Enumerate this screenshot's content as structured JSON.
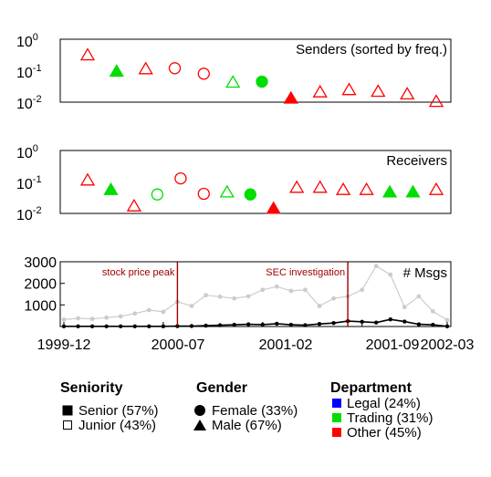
{
  "chart_data": [
    {
      "type": "scatter",
      "title": "Senders (sorted by freq.)",
      "yscale": "log",
      "ylim": [
        0.01,
        1
      ],
      "y_tick_labels": [
        {
          "base": "10",
          "exp": "0"
        },
        {
          "base": "10",
          "exp": "-1"
        },
        {
          "base": "10",
          "exp": "-2"
        }
      ],
      "points": [
        {
          "rank": 1,
          "y": 0.33,
          "marker": "triangle",
          "filled": false,
          "color": "#ff0000"
        },
        {
          "rank": 2,
          "y": 0.1,
          "marker": "triangle",
          "filled": true,
          "color": "#00dd00"
        },
        {
          "rank": 3,
          "y": 0.12,
          "marker": "triangle",
          "filled": false,
          "color": "#ff0000"
        },
        {
          "rank": 4,
          "y": 0.12,
          "marker": "circle",
          "filled": false,
          "color": "#ff0000"
        },
        {
          "rank": 5,
          "y": 0.08,
          "marker": "circle",
          "filled": false,
          "color": "#ff0000"
        },
        {
          "rank": 6,
          "y": 0.045,
          "marker": "triangle",
          "filled": false,
          "color": "#00dd00"
        },
        {
          "rank": 7,
          "y": 0.045,
          "marker": "circle",
          "filled": true,
          "color": "#00dd00"
        },
        {
          "rank": 8,
          "y": 0.014,
          "marker": "triangle",
          "filled": true,
          "color": "#ff0000"
        },
        {
          "rank": 9,
          "y": 0.022,
          "marker": "triangle",
          "filled": false,
          "color": "#ff0000"
        },
        {
          "rank": 10,
          "y": 0.026,
          "marker": "triangle",
          "filled": false,
          "color": "#ff0000"
        },
        {
          "rank": 11,
          "y": 0.023,
          "marker": "triangle",
          "filled": false,
          "color": "#ff0000"
        },
        {
          "rank": 12,
          "y": 0.019,
          "marker": "triangle",
          "filled": false,
          "color": "#ff0000"
        },
        {
          "rank": 13,
          "y": 0.011,
          "marker": "triangle",
          "filled": false,
          "color": "#ff0000"
        }
      ]
    },
    {
      "type": "scatter",
      "title": "Receivers",
      "yscale": "log",
      "ylim": [
        0.01,
        1
      ],
      "y_tick_labels": [
        {
          "base": "10",
          "exp": "0"
        },
        {
          "base": "10",
          "exp": "-1"
        },
        {
          "base": "10",
          "exp": "-2"
        }
      ],
      "points": [
        {
          "rank": 1,
          "y": 0.12,
          "marker": "triangle",
          "filled": false,
          "color": "#ff0000"
        },
        {
          "rank": 2,
          "y": 0.06,
          "marker": "triangle",
          "filled": true,
          "color": "#00dd00"
        },
        {
          "rank": 3,
          "y": 0.018,
          "marker": "triangle",
          "filled": false,
          "color": "#ff0000"
        },
        {
          "rank": 4,
          "y": 0.04,
          "marker": "circle",
          "filled": false,
          "color": "#00dd00"
        },
        {
          "rank": 5,
          "y": 0.13,
          "marker": "circle",
          "filled": false,
          "color": "#ff0000"
        },
        {
          "rank": 6,
          "y": 0.042,
          "marker": "circle",
          "filled": false,
          "color": "#ff0000"
        },
        {
          "rank": 7,
          "y": 0.05,
          "marker": "triangle",
          "filled": false,
          "color": "#00dd00"
        },
        {
          "rank": 8,
          "y": 0.04,
          "marker": "circle",
          "filled": true,
          "color": "#00dd00"
        },
        {
          "rank": 9,
          "y": 0.015,
          "marker": "triangle",
          "filled": true,
          "color": "#ff0000"
        },
        {
          "rank": 10,
          "y": 0.07,
          "marker": "triangle",
          "filled": false,
          "color": "#ff0000"
        },
        {
          "rank": 11,
          "y": 0.07,
          "marker": "triangle",
          "filled": false,
          "color": "#ff0000"
        },
        {
          "rank": 12,
          "y": 0.06,
          "marker": "triangle",
          "filled": false,
          "color": "#ff0000"
        },
        {
          "rank": 13,
          "y": 0.06,
          "marker": "triangle",
          "filled": false,
          "color": "#ff0000"
        },
        {
          "rank": 14,
          "y": 0.05,
          "marker": "triangle",
          "filled": true,
          "color": "#00dd00"
        },
        {
          "rank": 15,
          "y": 0.05,
          "marker": "triangle",
          "filled": true,
          "color": "#00dd00"
        },
        {
          "rank": 16,
          "y": 0.06,
          "marker": "triangle",
          "filled": false,
          "color": "#ff0000"
        }
      ]
    },
    {
      "type": "line",
      "title": "# Msgs",
      "x_tick_labels": [
        "1999-12",
        "2000-07",
        "2001-02",
        "2001-09",
        "2002-03"
      ],
      "xlim": [
        "1999-12",
        "2002-03"
      ],
      "y_ticks": [
        1000,
        2000,
        3000
      ],
      "ylim": [
        0,
        3000
      ],
      "events": [
        {
          "date": "2000-08",
          "label": "stock price peak"
        },
        {
          "date": "2001-08",
          "label": "SEC investigation"
        }
      ],
      "series": [
        {
          "color": "#cccccc",
          "points": [
            [
              "1999-12",
              320
            ],
            [
              "2000-01",
              380
            ],
            [
              "2000-02",
              350
            ],
            [
              "2000-03",
              410
            ],
            [
              "2000-04",
              470
            ],
            [
              "2000-05",
              600
            ],
            [
              "2000-06",
              760
            ],
            [
              "2000-07",
              680
            ],
            [
              "2000-08",
              1150
            ],
            [
              "2000-09",
              950
            ],
            [
              "2000-10",
              1450
            ],
            [
              "2000-11",
              1380
            ],
            [
              "2000-12",
              1300
            ],
            [
              "2001-01",
              1400
            ],
            [
              "2001-02",
              1700
            ],
            [
              "2001-03",
              1850
            ],
            [
              "2001-04",
              1650
            ],
            [
              "2001-05",
              1700
            ],
            [
              "2001-06",
              950
            ],
            [
              "2001-07",
              1300
            ],
            [
              "2001-08",
              1400
            ],
            [
              "2001-09",
              1700
            ],
            [
              "2001-10",
              2800
            ],
            [
              "2001-11",
              2400
            ],
            [
              "2001-12",
              900
            ],
            [
              "2002-01",
              1400
            ],
            [
              "2002-02",
              700
            ],
            [
              "2002-03",
              300
            ]
          ]
        },
        {
          "color": "#000000",
          "points": [
            [
              "1999-12",
              10
            ],
            [
              "2000-01",
              10
            ],
            [
              "2000-02",
              10
            ],
            [
              "2000-03",
              10
            ],
            [
              "2000-04",
              10
            ],
            [
              "2000-05",
              10
            ],
            [
              "2000-06",
              10
            ],
            [
              "2000-07",
              10
            ],
            [
              "2000-08",
              15
            ],
            [
              "2000-09",
              20
            ],
            [
              "2000-10",
              40
            ],
            [
              "2000-11",
              60
            ],
            [
              "2000-12",
              80
            ],
            [
              "2001-01",
              100
            ],
            [
              "2001-02",
              90
            ],
            [
              "2001-03",
              130
            ],
            [
              "2001-04",
              80
            ],
            [
              "2001-05",
              60
            ],
            [
              "2001-06",
              120
            ],
            [
              "2001-07",
              160
            ],
            [
              "2001-08",
              250
            ],
            [
              "2001-09",
              220
            ],
            [
              "2001-10",
              180
            ],
            [
              "2001-11",
              330
            ],
            [
              "2001-12",
              230
            ],
            [
              "2002-01",
              100
            ],
            [
              "2002-02",
              80
            ],
            [
              "2002-03",
              10
            ]
          ]
        }
      ]
    }
  ],
  "legend": {
    "seniority": {
      "title": "Seniority",
      "items": [
        {
          "label": "Senior (57%)",
          "symbol": "square",
          "filled": true
        },
        {
          "label": "Junior (43%)",
          "symbol": "square",
          "filled": false
        }
      ]
    },
    "gender": {
      "title": "Gender",
      "items": [
        {
          "label": "Female (33%)",
          "symbol": "circle"
        },
        {
          "label": "Male (67%)",
          "symbol": "triangle"
        }
      ]
    },
    "department": {
      "title": "Department",
      "items": [
        {
          "label": "Legal (24%)",
          "color": "#0000ff"
        },
        {
          "label": "Trading (31%)",
          "color": "#00dd00"
        },
        {
          "label": "Other (45%)",
          "color": "#ff0000"
        }
      ]
    }
  }
}
